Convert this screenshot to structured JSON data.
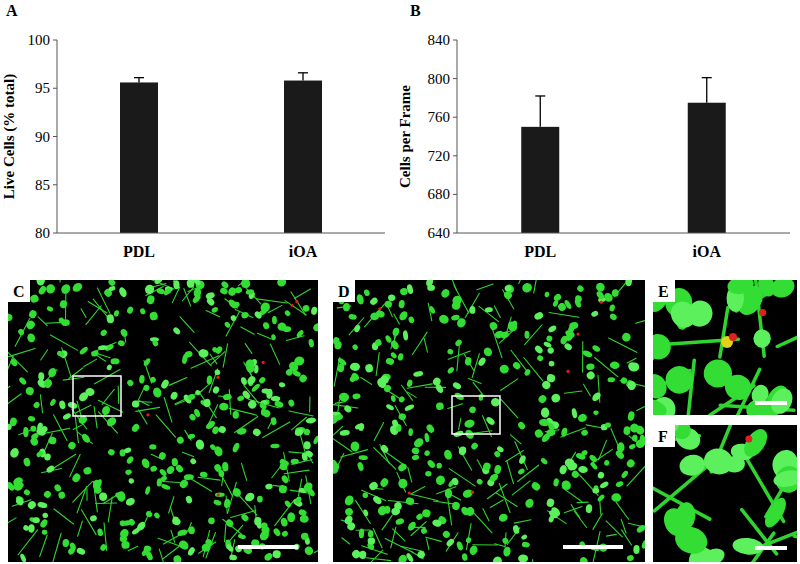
{
  "chart_data": [
    {
      "type": "bar",
      "annotations": [
        "A"
      ],
      "y_label": "Live Cells (% total)",
      "categories": [
        "PDL",
        "iOA"
      ],
      "values": [
        95.6,
        95.8
      ],
      "errors": [
        0.5,
        0.8
      ],
      "color": "#1a1a1a",
      "ylim": [
        80,
        100
      ],
      "yticks": [
        80,
        85,
        90,
        95,
        100
      ],
      "grid": false
    },
    {
      "type": "bar",
      "annotations": [
        "B"
      ],
      "y_label": "Cells per Frame",
      "categories": [
        "PDL",
        "iOA"
      ],
      "values": [
        750,
        775
      ],
      "errors": [
        32,
        26
      ],
      "color": "#1a1a1a",
      "ylim": [
        640,
        840
      ],
      "yticks": [
        640,
        680,
        720,
        760,
        800,
        840
      ],
      "grid": false
    }
  ],
  "image_panels": [
    "C",
    "D",
    "E",
    "F"
  ]
}
